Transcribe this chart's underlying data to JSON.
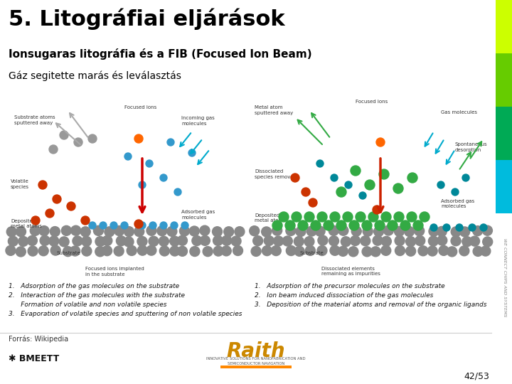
{
  "title": "5. Litográfiai eljárások",
  "subtitle": "Ionsugaras litográfia és a FIB (Focused Ion Beam)",
  "subtitle2": "Gáz segitette marás és leválasztás",
  "background_color": "#ffffff",
  "title_color": "#000000",
  "subtitle_color": "#000000",
  "side_bar_colors": [
    "#ccff00",
    "#66cc00",
    "#00aa55",
    "#00bbdd"
  ],
  "footer_source": "Forrás: Wikipedia",
  "footer_page": "42/53",
  "side_text": "WE CONNECT CHIPS AND SYSTEMS",
  "left_diagram_text_lines": [
    "1.   Adsorption of the gas molecules on the substrate",
    "2.   Interaction of the gas molecules with the substrate",
    "      Formation of volatile and non volatile species",
    "3.   Evaporation of volatile species and sputtering of non volatile species"
  ],
  "right_diagram_text_lines": [
    "1.   Adsorption of the precursor molecules on the substrate",
    "2.   Ion beam induced dissociation of the gas molecules",
    "3.   Deposition of the material atoms and removal of the organic ligands"
  ],
  "title_fontsize": 22,
  "subtitle_fontsize": 11,
  "subtitle2_fontsize": 10,
  "footer_fontsize": 7,
  "page_fontsize": 9,
  "diagram_text_fontsize": 5
}
